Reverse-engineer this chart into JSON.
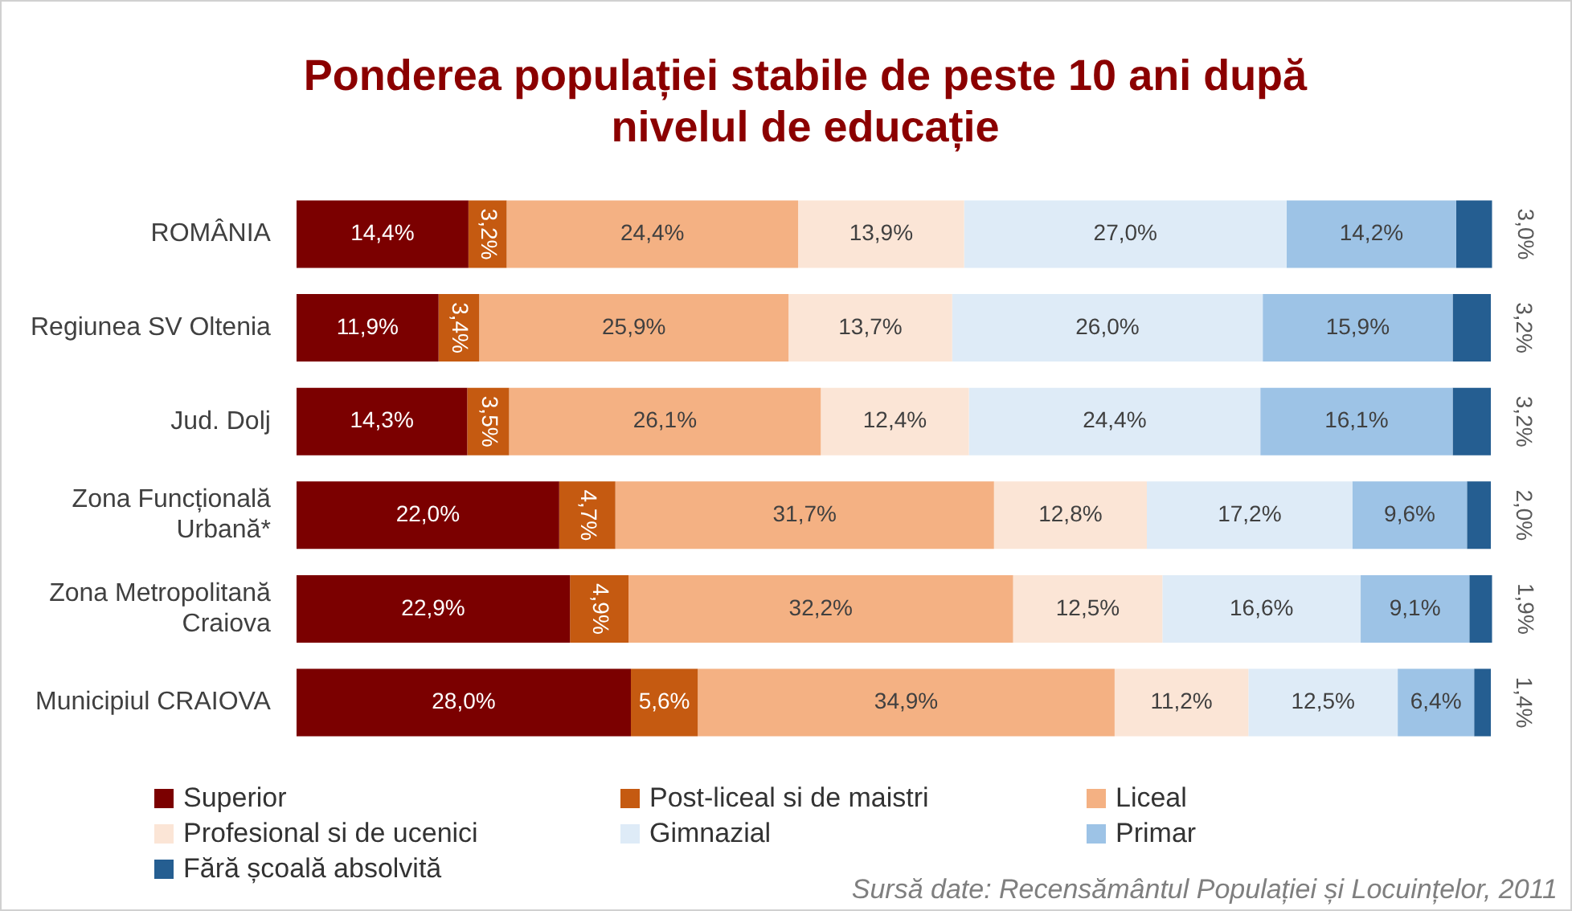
{
  "chart_data": {
    "type": "bar",
    "orientation": "horizontal",
    "stacked": true,
    "title": "Ponderea populației stabile de peste 10 ani după nivelul de educație",
    "categories": [
      "ROMÂNIA",
      "Regiunea SV Oltenia",
      "Jud. Dolj",
      "Zona Funcțională Urbană*",
      "Zona Metropolitană Craiova",
      "Municipiul CRAIOVA"
    ],
    "xlim": [
      0,
      100.2
    ],
    "tick_labels": "y",
    "legend": "bottom",
    "series": [
      {
        "name": "Superior",
        "color": "#7b0000",
        "values": [
          14.4,
          11.9,
          14.3,
          22.0,
          22.9,
          28.0
        ],
        "value_labels": [
          "14,4%",
          "11,9%",
          "14,3%",
          "22,0%",
          "22,9%",
          "28,0%"
        ]
      },
      {
        "name": "Post-liceal si de maistri",
        "color": "#c55a11",
        "values": [
          3.2,
          3.4,
          3.5,
          4.7,
          4.9,
          5.6
        ],
        "value_labels": [
          "3,2%",
          "3,4%",
          "3,5%",
          "4,7%",
          "4,9%",
          "5,6%"
        ]
      },
      {
        "name": "Liceal",
        "color": "#f4b183",
        "values": [
          24.4,
          25.9,
          26.1,
          31.7,
          32.2,
          34.9
        ],
        "value_labels": [
          "24,4%",
          "25,9%",
          "26,1%",
          "31,7%",
          "32,2%",
          "34,9%"
        ]
      },
      {
        "name": "Profesional si de ucenici",
        "color": "#fbe5d6",
        "values": [
          13.9,
          13.7,
          12.4,
          12.8,
          12.5,
          11.2
        ],
        "value_labels": [
          "13,9%",
          "13,7%",
          "12,4%",
          "12,8%",
          "12,5%",
          "11,2%"
        ]
      },
      {
        "name": "Gimnazial",
        "color": "#deebf7",
        "values": [
          27.0,
          26.0,
          24.4,
          17.2,
          16.6,
          12.5
        ],
        "value_labels": [
          "27,0%",
          "26,0%",
          "24,4%",
          "17,2%",
          "16,6%",
          "12,5%"
        ]
      },
      {
        "name": "Primar",
        "color": "#9dc3e6",
        "values": [
          14.2,
          15.9,
          16.1,
          9.6,
          9.1,
          6.4
        ],
        "value_labels": [
          "14,2%",
          "15,9%",
          "16,1%",
          "9,6%",
          "9,1%",
          "6,4%"
        ]
      },
      {
        "name": "Fără școală absolvită",
        "color": "#255e91",
        "values": [
          3.0,
          3.2,
          3.2,
          2.0,
          1.9,
          1.4
        ],
        "value_labels": [
          "3,0%",
          "3,2%",
          "3,2%",
          "2,0%",
          "1,9%",
          "1,4%"
        ]
      }
    ],
    "annotations": [
      "Sursă date: Recensământul Populației și Locuințelor, 2011"
    ]
  }
}
